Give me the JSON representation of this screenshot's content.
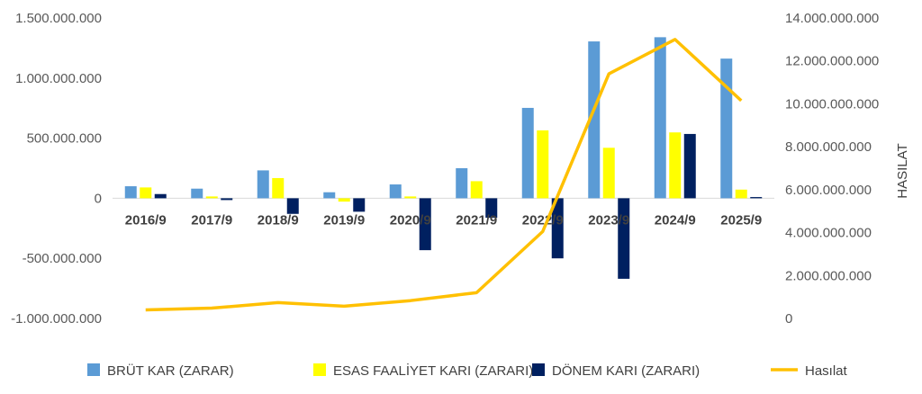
{
  "chart_data": {
    "type": "bar",
    "categories": [
      "2016/9",
      "2017/9",
      "2018/9",
      "2019/9",
      "2020/9",
      "2021/9",
      "2022/9",
      "2023/9",
      "2024/9",
      "2025/9"
    ],
    "series": [
      {
        "name": "BRÜT KAR (ZARAR)",
        "type": "bar",
        "axis": "left",
        "color": "#5B9BD5",
        "values": [
          100000000,
          80000000,
          232000000,
          50000000,
          115000000,
          250000000,
          752000000,
          1305000000,
          1340000000,
          1162000000
        ]
      },
      {
        "name": "ESAS FAALİYET KARI (ZARARI)",
        "type": "bar",
        "axis": "left",
        "color": "#FFFF00",
        "values": [
          90000000,
          15000000,
          168000000,
          -28000000,
          15000000,
          142000000,
          565000000,
          420000000,
          548000000,
          72000000
        ]
      },
      {
        "name": "DÖNEM KARI (ZARARI)",
        "type": "bar",
        "axis": "left",
        "color": "#002060",
        "values": [
          35000000,
          -15000000,
          -130000000,
          -112000000,
          -432000000,
          -162000000,
          -500000000,
          -670000000,
          535000000,
          10000000
        ]
      },
      {
        "name": "Hasılat",
        "type": "line",
        "axis": "right",
        "color": "#FFC000",
        "values": [
          400000000,
          480000000,
          740000000,
          570000000,
          830000000,
          1200000000,
          4050000000,
          11400000000,
          13000000000,
          10150000000
        ]
      }
    ],
    "y_left": {
      "min": -1000000000,
      "max": 1500000000,
      "ticks": [
        "-1.000.000.000",
        "-500.000.000",
        "0",
        "500.000.000",
        "1.000.000.000",
        "1.500.000.000"
      ]
    },
    "y_right": {
      "min": 0,
      "max": 14000000000,
      "label": "HASILAT",
      "ticks": [
        "0",
        "2.000.000.000",
        "4.000.000.000",
        "6.000.000.000",
        "8.000.000.000",
        "10.000.000.000",
        "12.000.000.000",
        "14.000.000.000"
      ]
    },
    "legend_position": "bottom",
    "grid": false
  }
}
